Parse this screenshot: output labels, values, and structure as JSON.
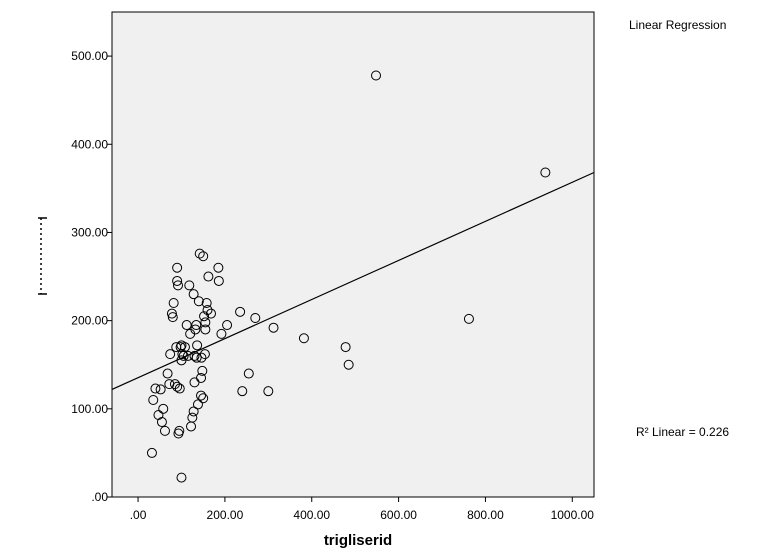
{
  "chart_data": {
    "type": "scatter",
    "title": "",
    "xlabel": "trigliserid",
    "ylabel": "",
    "xlim": [
      -60,
      1050
    ],
    "ylim": [
      0,
      550
    ],
    "x_ticks": [
      ".00",
      "200.00",
      "400.00",
      "600.00",
      "800.00",
      "1000.00"
    ],
    "x_tick_values": [
      0,
      200,
      400,
      600,
      800,
      1000
    ],
    "y_ticks": [
      ".00",
      "100.00",
      "200.00",
      "300.00",
      "400.00",
      "500.00"
    ],
    "y_tick_values": [
      0,
      100,
      200,
      300,
      400,
      500
    ],
    "legend_label": "Linear Regression",
    "r2_label": "R² Linear = 0.226",
    "fit_line": {
      "x": [
        -60,
        1050
      ],
      "y": [
        122,
        368
      ]
    },
    "grid": false,
    "plot_background": "#f0f0f0",
    "points": [
      [
        32,
        50
      ],
      [
        100,
        22
      ],
      [
        35,
        110
      ],
      [
        40,
        123
      ],
      [
        47,
        93
      ],
      [
        52,
        122
      ],
      [
        55,
        85
      ],
      [
        58,
        100
      ],
      [
        62,
        75
      ],
      [
        68,
        140
      ],
      [
        72,
        128
      ],
      [
        74,
        162
      ],
      [
        78,
        208
      ],
      [
        80,
        204
      ],
      [
        82,
        220
      ],
      [
        85,
        128
      ],
      [
        88,
        170
      ],
      [
        90,
        260
      ],
      [
        90,
        245
      ],
      [
        92,
        240
      ],
      [
        90,
        125
      ],
      [
        93,
        72
      ],
      [
        95,
        75
      ],
      [
        96,
        123
      ],
      [
        98,
        170
      ],
      [
        100,
        155
      ],
      [
        100,
        172
      ],
      [
        102,
        162
      ],
      [
        105,
        160
      ],
      [
        108,
        170
      ],
      [
        112,
        195
      ],
      [
        115,
        160
      ],
      [
        118,
        240
      ],
      [
        120,
        185
      ],
      [
        122,
        80
      ],
      [
        125,
        90
      ],
      [
        128,
        97
      ],
      [
        128,
        230
      ],
      [
        130,
        160
      ],
      [
        130,
        130
      ],
      [
        132,
        190
      ],
      [
        134,
        195
      ],
      [
        135,
        158
      ],
      [
        136,
        172
      ],
      [
        138,
        105
      ],
      [
        140,
        222
      ],
      [
        142,
        276
      ],
      [
        145,
        115
      ],
      [
        145,
        135
      ],
      [
        146,
        158
      ],
      [
        148,
        143
      ],
      [
        150,
        112
      ],
      [
        150,
        273
      ],
      [
        152,
        205
      ],
      [
        154,
        162
      ],
      [
        155,
        198
      ],
      [
        155,
        190
      ],
      [
        158,
        220
      ],
      [
        160,
        212
      ],
      [
        162,
        250
      ],
      [
        168,
        208
      ],
      [
        185,
        260
      ],
      [
        186,
        245
      ],
      [
        192,
        185
      ],
      [
        205,
        195
      ],
      [
        235,
        210
      ],
      [
        240,
        120
      ],
      [
        255,
        140
      ],
      [
        270,
        203
      ],
      [
        300,
        120
      ],
      [
        312,
        192
      ],
      [
        382,
        180
      ],
      [
        478,
        170
      ],
      [
        485,
        150
      ],
      [
        548,
        478
      ],
      [
        762,
        202
      ],
      [
        938,
        368
      ]
    ]
  }
}
